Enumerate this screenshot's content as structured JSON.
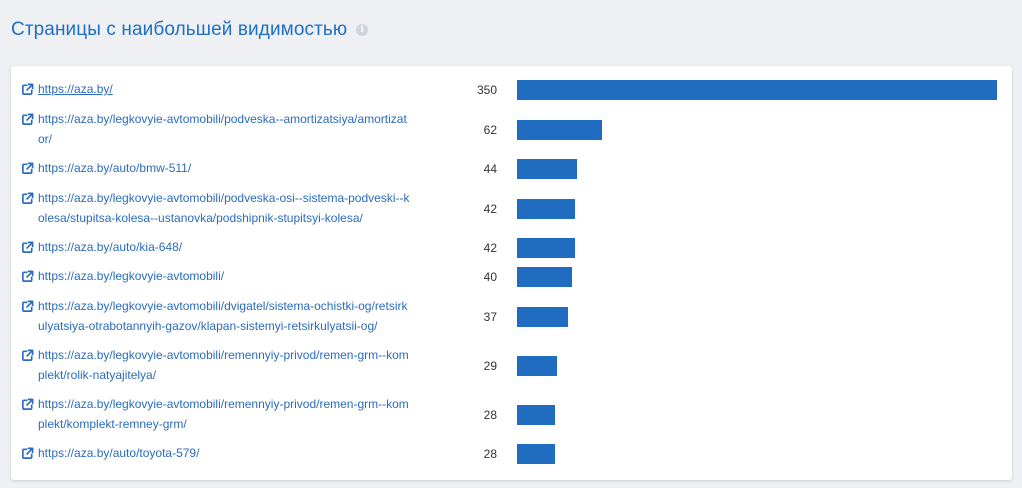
{
  "header": {
    "title": "Страницы с наибольшей видимостью",
    "info_glyph": "i"
  },
  "colors": {
    "accent": "#1f6fc5",
    "bar": "#1f6cc0",
    "link": "#2a6cbf"
  },
  "rows": [
    {
      "url": "https://aza.by/",
      "count": "350",
      "value": 350
    },
    {
      "url": "https://aza.by/legkovyie-avtomobili/podveska--amortizatsiya/amortizator/",
      "count": "62",
      "value": 62
    },
    {
      "url": "https://aza.by/auto/bmw-511/",
      "count": "44",
      "value": 44
    },
    {
      "url": "https://aza.by/legkovyie-avtomobili/podveska-osi--sistema-podveski--kolesa/stupitsa-kolesa--ustanovka/podshipnik-stupitsyi-kolesa/",
      "count": "42",
      "value": 42
    },
    {
      "url": "https://aza.by/auto/kia-648/",
      "count": "42",
      "value": 42
    },
    {
      "url": "https://aza.by/legkovyie-avtomobili/",
      "count": "40",
      "value": 40
    },
    {
      "url": "https://aza.by/legkovyie-avtomobili/dvigatel/sistema-ochistki-og/retsirkulyatsiya-otrabotannyih-gazov/klapan-sistemyi-retsirkulyatsii-og/",
      "count": "37",
      "value": 37
    },
    {
      "url": "https://aza.by/legkovyie-avtomobili/remennyiy-privod/remen-grm--komplekt/rolik-natyajitelya/",
      "count": "29",
      "value": 29
    },
    {
      "url": "https://aza.by/legkovyie-avtomobili/remennyiy-privod/remen-grm--komplekt/komplekt-remney-grm/",
      "count": "28",
      "value": 28
    },
    {
      "url": "https://aza.by/auto/toyota-579/",
      "count": "28",
      "value": 28
    }
  ]
}
